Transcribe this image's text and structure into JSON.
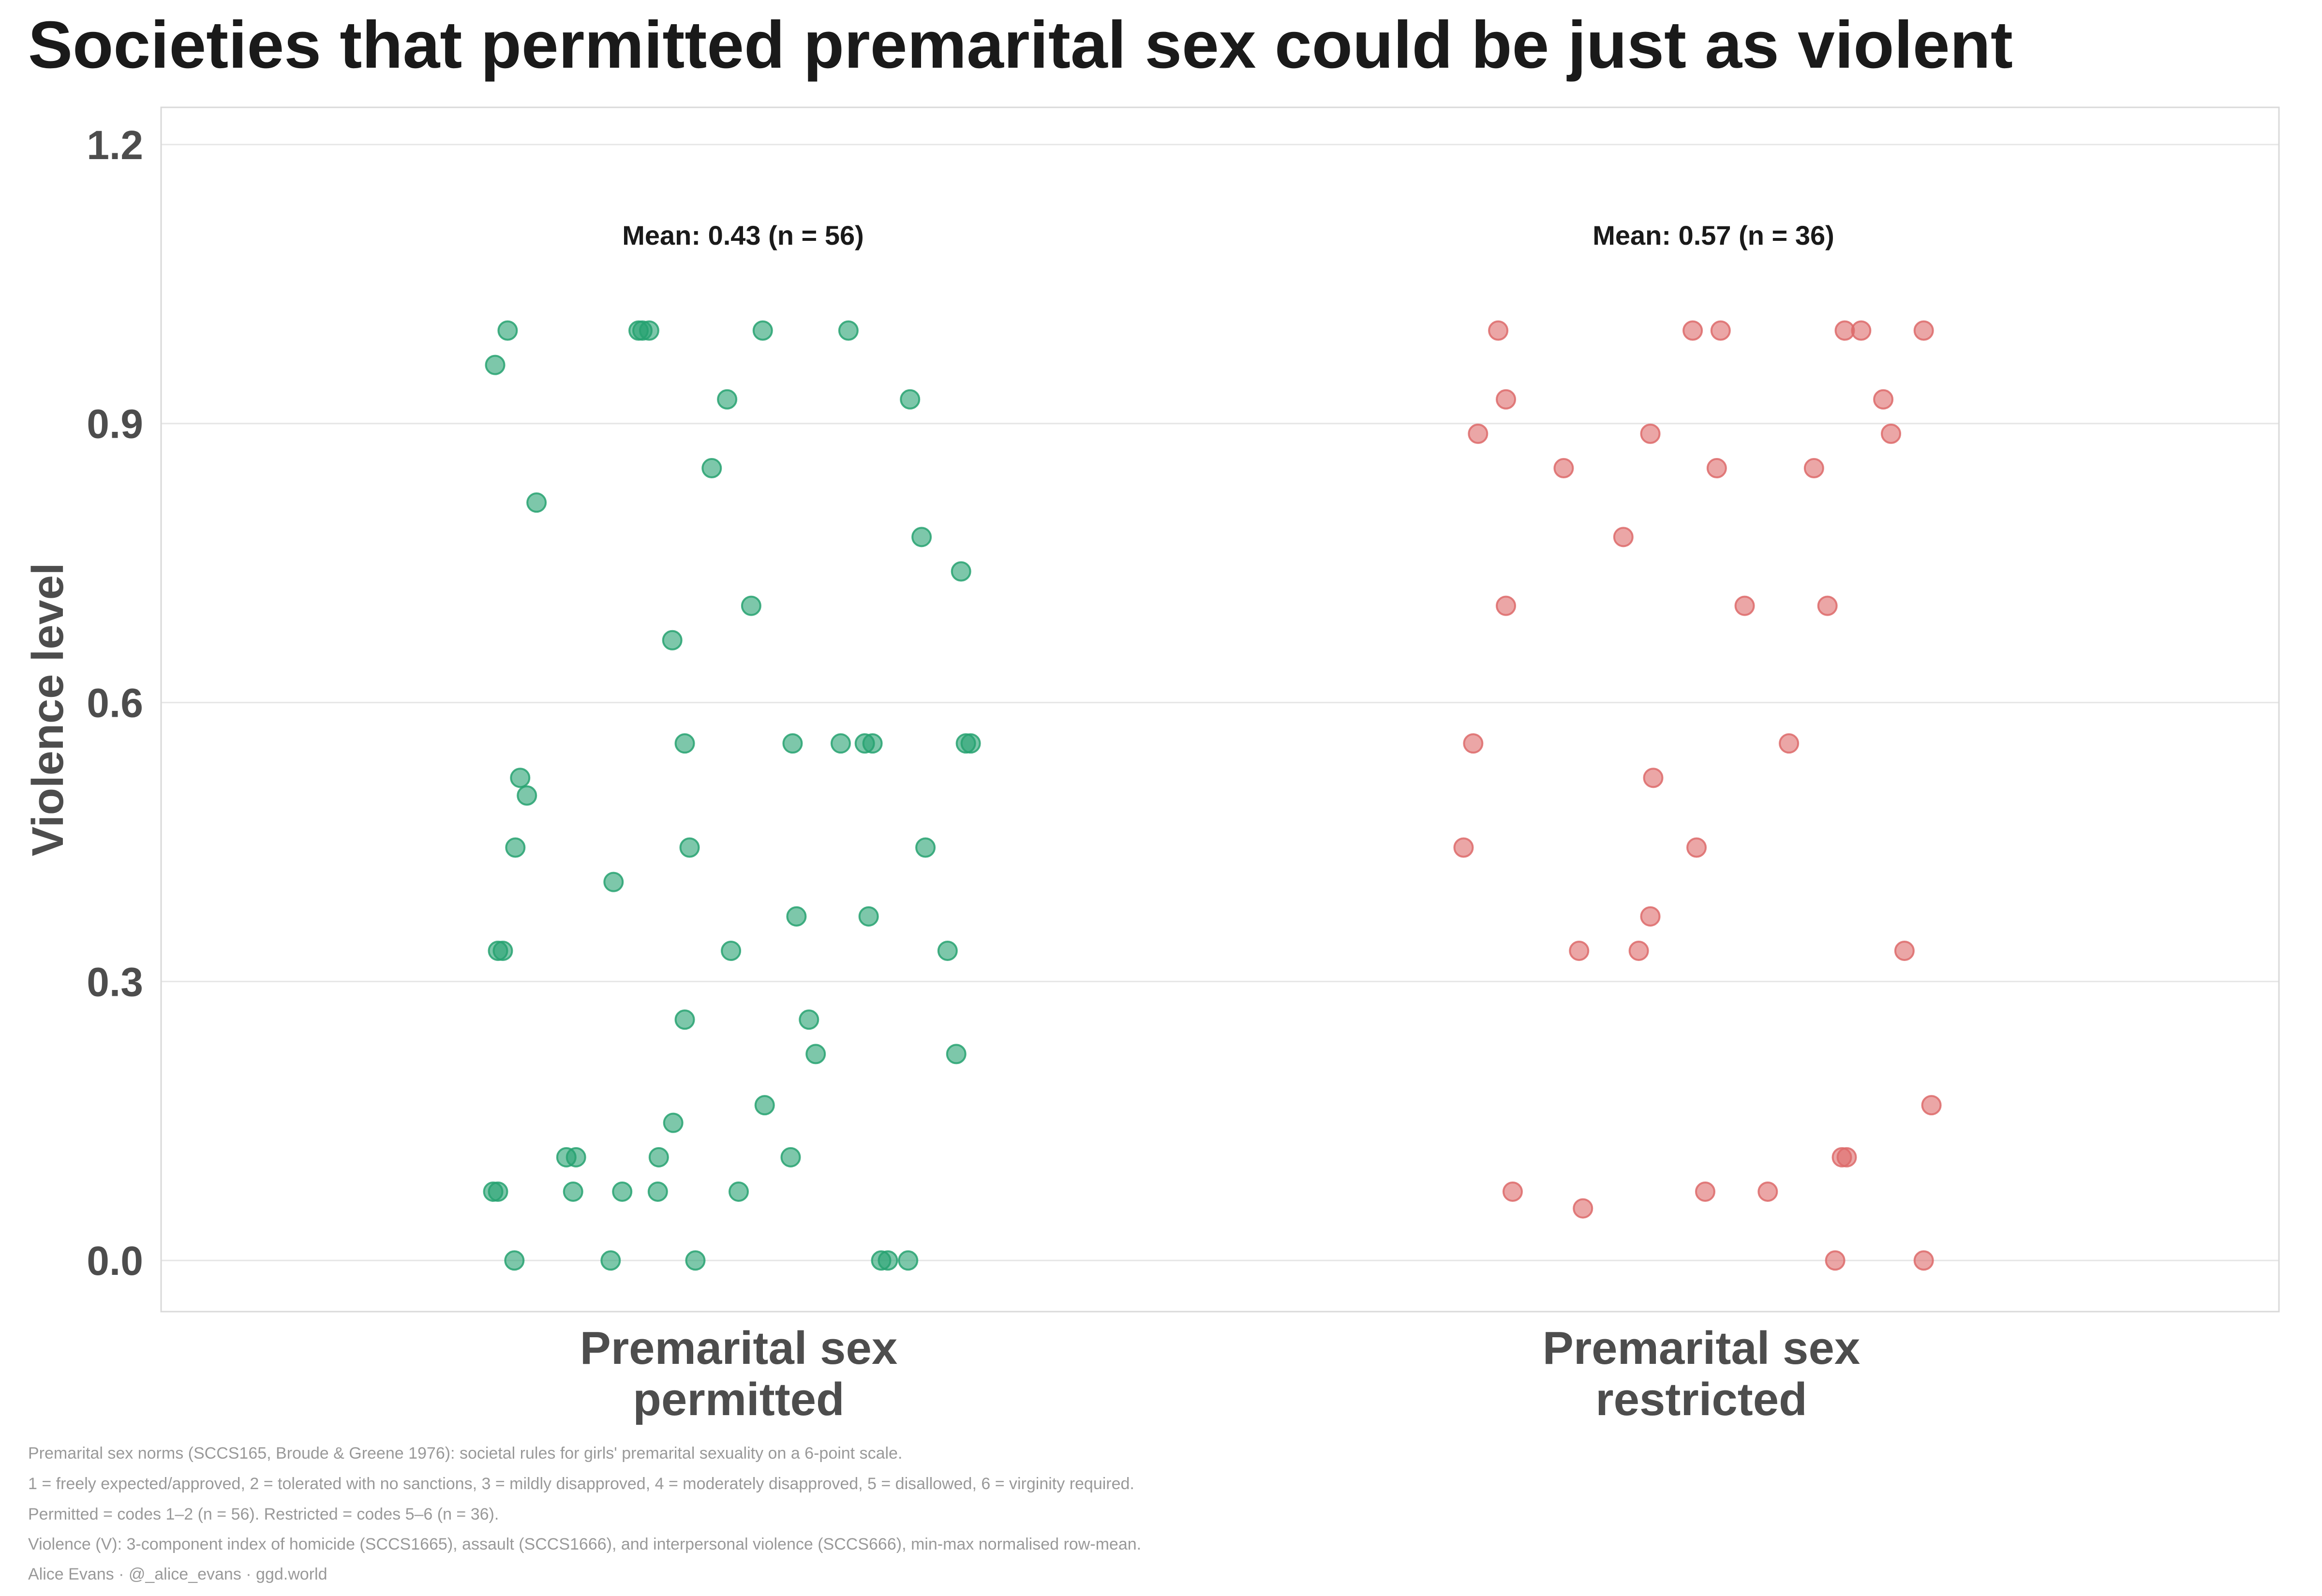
{
  "chart_data": {
    "type": "scatter",
    "title": "Societies that permitted premarital sex could be just as violent",
    "xlabel": "",
    "ylabel": "Violence level",
    "ylim": [
      -0.055,
      1.24
    ],
    "yticks": [
      0.0,
      0.3,
      0.6,
      0.9,
      1.2
    ],
    "ytick_labels": [
      "0.0",
      "0.3",
      "0.6",
      "0.9",
      "1.2"
    ],
    "grid": true,
    "categories": [
      "Premarital sex\npermitted",
      "Premarital sex\nrestricted"
    ],
    "annotations": [
      "Mean: 0.43  (n = 56)",
      "Mean: 0.57  (n = 36)"
    ],
    "series": [
      {
        "name": "Premarital sex permitted",
        "color": "#27a271",
        "points": [
          {
            "jitter": -0.24,
            "y": 1.0
          },
          {
            "jitter": -0.104,
            "y": 1.0
          },
          {
            "jitter": -0.1,
            "y": 1.0
          },
          {
            "jitter": -0.093,
            "y": 1.0
          },
          {
            "jitter": 0.025,
            "y": 1.0
          },
          {
            "jitter": 0.114,
            "y": 1.0
          },
          {
            "jitter": -0.253,
            "y": 0.963
          },
          {
            "jitter": -0.012,
            "y": 0.926
          },
          {
            "jitter": 0.178,
            "y": 0.926
          },
          {
            "jitter": -0.028,
            "y": 0.852
          },
          {
            "jitter": -0.21,
            "y": 0.815
          },
          {
            "jitter": 0.19,
            "y": 0.778
          },
          {
            "jitter": 0.231,
            "y": 0.741
          },
          {
            "jitter": 0.013,
            "y": 0.704
          },
          {
            "jitter": -0.069,
            "y": 0.667
          },
          {
            "jitter": -0.056,
            "y": 0.556
          },
          {
            "jitter": 0.056,
            "y": 0.556
          },
          {
            "jitter": 0.106,
            "y": 0.556
          },
          {
            "jitter": 0.131,
            "y": 0.556
          },
          {
            "jitter": 0.139,
            "y": 0.556
          },
          {
            "jitter": 0.236,
            "y": 0.556
          },
          {
            "jitter": 0.241,
            "y": 0.556
          },
          {
            "jitter": -0.227,
            "y": 0.519
          },
          {
            "jitter": -0.22,
            "y": 0.5
          },
          {
            "jitter": -0.232,
            "y": 0.444
          },
          {
            "jitter": -0.051,
            "y": 0.444
          },
          {
            "jitter": 0.194,
            "y": 0.444
          },
          {
            "jitter": -0.13,
            "y": 0.407
          },
          {
            "jitter": 0.06,
            "y": 0.37
          },
          {
            "jitter": 0.135,
            "y": 0.37
          },
          {
            "jitter": -0.25,
            "y": 0.333
          },
          {
            "jitter": -0.245,
            "y": 0.333
          },
          {
            "jitter": -0.008,
            "y": 0.333
          },
          {
            "jitter": 0.217,
            "y": 0.333
          },
          {
            "jitter": -0.056,
            "y": 0.259
          },
          {
            "jitter": 0.073,
            "y": 0.259
          },
          {
            "jitter": 0.08,
            "y": 0.222
          },
          {
            "jitter": 0.226,
            "y": 0.222
          },
          {
            "jitter": 0.027,
            "y": 0.167
          },
          {
            "jitter": -0.068,
            "y": 0.148
          },
          {
            "jitter": -0.179,
            "y": 0.111
          },
          {
            "jitter": -0.169,
            "y": 0.111
          },
          {
            "jitter": -0.083,
            "y": 0.111
          },
          {
            "jitter": 0.054,
            "y": 0.111
          },
          {
            "jitter": -0.255,
            "y": 0.074
          },
          {
            "jitter": -0.25,
            "y": 0.074
          },
          {
            "jitter": -0.172,
            "y": 0.074
          },
          {
            "jitter": -0.121,
            "y": 0.074
          },
          {
            "jitter": -0.084,
            "y": 0.074
          },
          {
            "jitter": 0.0,
            "y": 0.074
          },
          {
            "jitter": -0.233,
            "y": 0.0
          },
          {
            "jitter": -0.133,
            "y": 0.0
          },
          {
            "jitter": -0.045,
            "y": 0.0
          },
          {
            "jitter": 0.148,
            "y": 0.0
          },
          {
            "jitter": 0.155,
            "y": 0.0
          },
          {
            "jitter": 0.176,
            "y": 0.0
          }
        ]
      },
      {
        "name": "Premarital sex restricted",
        "color": "#dd6a6a",
        "points": [
          {
            "jitter": -0.211,
            "y": 1.0
          },
          {
            "jitter": -0.009,
            "y": 1.0
          },
          {
            "jitter": 0.02,
            "y": 1.0
          },
          {
            "jitter": 0.149,
            "y": 1.0
          },
          {
            "jitter": 0.166,
            "y": 1.0
          },
          {
            "jitter": 0.231,
            "y": 1.0
          },
          {
            "jitter": -0.203,
            "y": 0.926
          },
          {
            "jitter": 0.189,
            "y": 0.926
          },
          {
            "jitter": -0.232,
            "y": 0.889
          },
          {
            "jitter": -0.053,
            "y": 0.889
          },
          {
            "jitter": 0.197,
            "y": 0.889
          },
          {
            "jitter": -0.143,
            "y": 0.852
          },
          {
            "jitter": 0.016,
            "y": 0.852
          },
          {
            "jitter": 0.117,
            "y": 0.852
          },
          {
            "jitter": -0.081,
            "y": 0.778
          },
          {
            "jitter": -0.203,
            "y": 0.704
          },
          {
            "jitter": 0.045,
            "y": 0.704
          },
          {
            "jitter": 0.131,
            "y": 0.704
          },
          {
            "jitter": -0.237,
            "y": 0.556
          },
          {
            "jitter": 0.091,
            "y": 0.556
          },
          {
            "jitter": -0.05,
            "y": 0.519
          },
          {
            "jitter": -0.247,
            "y": 0.444
          },
          {
            "jitter": -0.005,
            "y": 0.444
          },
          {
            "jitter": -0.053,
            "y": 0.37
          },
          {
            "jitter": -0.127,
            "y": 0.333
          },
          {
            "jitter": -0.065,
            "y": 0.333
          },
          {
            "jitter": 0.211,
            "y": 0.333
          },
          {
            "jitter": 0.239,
            "y": 0.167
          },
          {
            "jitter": 0.146,
            "y": 0.111
          },
          {
            "jitter": 0.151,
            "y": 0.111
          },
          {
            "jitter": -0.196,
            "y": 0.074
          },
          {
            "jitter": 0.004,
            "y": 0.074
          },
          {
            "jitter": 0.069,
            "y": 0.074
          },
          {
            "jitter": -0.123,
            "y": 0.056
          },
          {
            "jitter": 0.139,
            "y": 0.0
          },
          {
            "jitter": 0.231,
            "y": 0.0
          }
        ]
      }
    ]
  },
  "caption_lines": [
    "Premarital sex norms (SCCS165, Broude & Greene 1976): societal rules for girls' premarital sexuality on a 6-point scale.",
    "1 = freely expected/approved, 2 = tolerated with no sanctions, 3 = mildly disapproved, 4 = moderately disapproved, 5 = disallowed, 6 = virginity required.",
    "Permitted = codes 1–2 (n = 56). Restricted = codes 5–6 (n = 36).",
    "Violence (V): 3-component index of homicide (SCCS1665), assault (SCCS1666), and interpersonal violence (SCCS666), min-max normalised row-mean.",
    "Alice Evans · @_alice_evans · ggd.world"
  ],
  "colors": {
    "permitted": "#27a271",
    "restricted": "#dd6a6a",
    "panel_border": "#d9d9d9",
    "grid": "#e6e6e6"
  }
}
